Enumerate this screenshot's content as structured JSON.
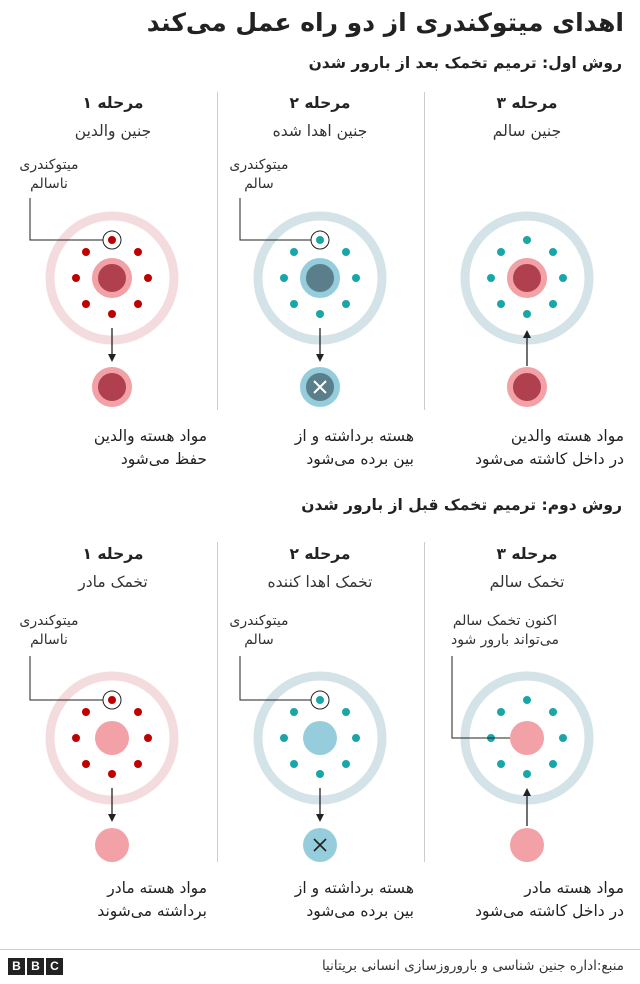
{
  "title": "اهدای میتوکندری از دو راه عمل می‌کند",
  "methods": [
    {
      "heading": "روش اول: ترمیم تخمک بعد از بارور شدن",
      "stages": [
        {
          "label": "مرحله ۱",
          "sublabel": "جنین والدین",
          "callout": [
            "میتوکندری",
            "ناسالم"
          ],
          "caption": [
            "مواد هسته والدین",
            "حفظ می‌شود"
          ]
        },
        {
          "label": "مرحله ۲",
          "sublabel": "جنین اهدا شده",
          "callout": [
            "میتوکندری",
            "سالم"
          ],
          "caption": [
            "هسته برداشته و از",
            "بین برده می‌شود"
          ]
        },
        {
          "label": "مرحله ۳",
          "sublabel": "جنین سالم",
          "callout": [],
          "caption": [
            "مواد هسته والدین",
            "در داخل کاشته می‌شود"
          ]
        }
      ]
    },
    {
      "heading": "روش دوم: ترمیم تخمک قبل از بارور شدن",
      "stages": [
        {
          "label": "مرحله ۱",
          "sublabel": "تخمک مادر",
          "callout": [
            "میتوکندری",
            "ناسالم"
          ],
          "caption": [
            "مواد هسته مادر",
            "برداشته می‌شوند"
          ]
        },
        {
          "label": "مرحله ۲",
          "sublabel": "تخمک اهدا کننده",
          "callout": [
            "میتوکندری",
            "سالم"
          ],
          "caption": [
            "هسته برداشته و از",
            "بین برده می‌شود"
          ]
        },
        {
          "label": "مرحله ۳",
          "sublabel": "تخمک سالم",
          "callout": [
            "اکنون تخمک سالم",
            "می‌تواند بارور شود"
          ],
          "caption": [
            "مواد هسته مادر",
            "در داخل کاشته می‌شود"
          ]
        }
      ]
    }
  ],
  "source": "منبع:اداره جنین شناسی و باروروزسازی انسانی بریتانیا",
  "logo": [
    "B",
    "B",
    "C"
  ],
  "colors": {
    "unhealthy_ring": "#f4dcde",
    "healthy_ring": "#d3e3e8",
    "unhealthy_dot": "#c00000",
    "healthy_dot": "#1aa6a6",
    "nucleus_dark": "#b0404e",
    "nucleus_pink": "#f2a1a6",
    "nucleus_blue_dark": "#5b7f8a",
    "nucleus_blue": "#95cddc"
  }
}
